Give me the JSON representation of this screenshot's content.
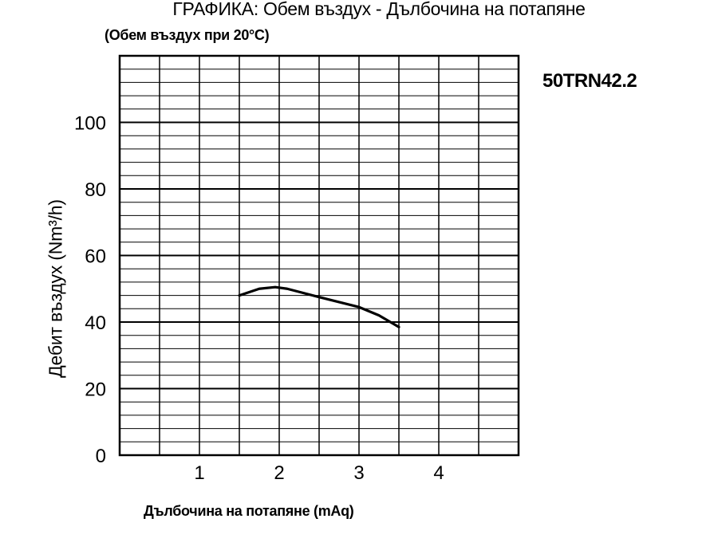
{
  "chart_data": {
    "type": "line",
    "title": "ГРАФИКА: Обем въздух - Дълбочина на потапяне",
    "subtitle": "(Обем въздух при 20°C)",
    "model": "50TRN42.2",
    "xlabel": "Дълбочина на потапяне (mAq)",
    "ylabel": "Дебит въздух (Nm³/h)",
    "xlim": [
      0,
      5
    ],
    "ylim": [
      0,
      120
    ],
    "x_ticks": [
      1,
      2,
      3,
      4
    ],
    "y_ticks": [
      0,
      20,
      40,
      60,
      80,
      100
    ],
    "grid": true,
    "x_grid_step": 0.5,
    "y_grid_step": 4,
    "y_major_grid_step": 20,
    "series": [
      {
        "x": [
          1.5,
          1.75,
          1.95,
          2.1,
          2.5,
          3.0,
          3.25,
          3.5
        ],
        "y": [
          48,
          50,
          50.5,
          50,
          47.5,
          44.5,
          42,
          38.5
        ]
      }
    ]
  }
}
